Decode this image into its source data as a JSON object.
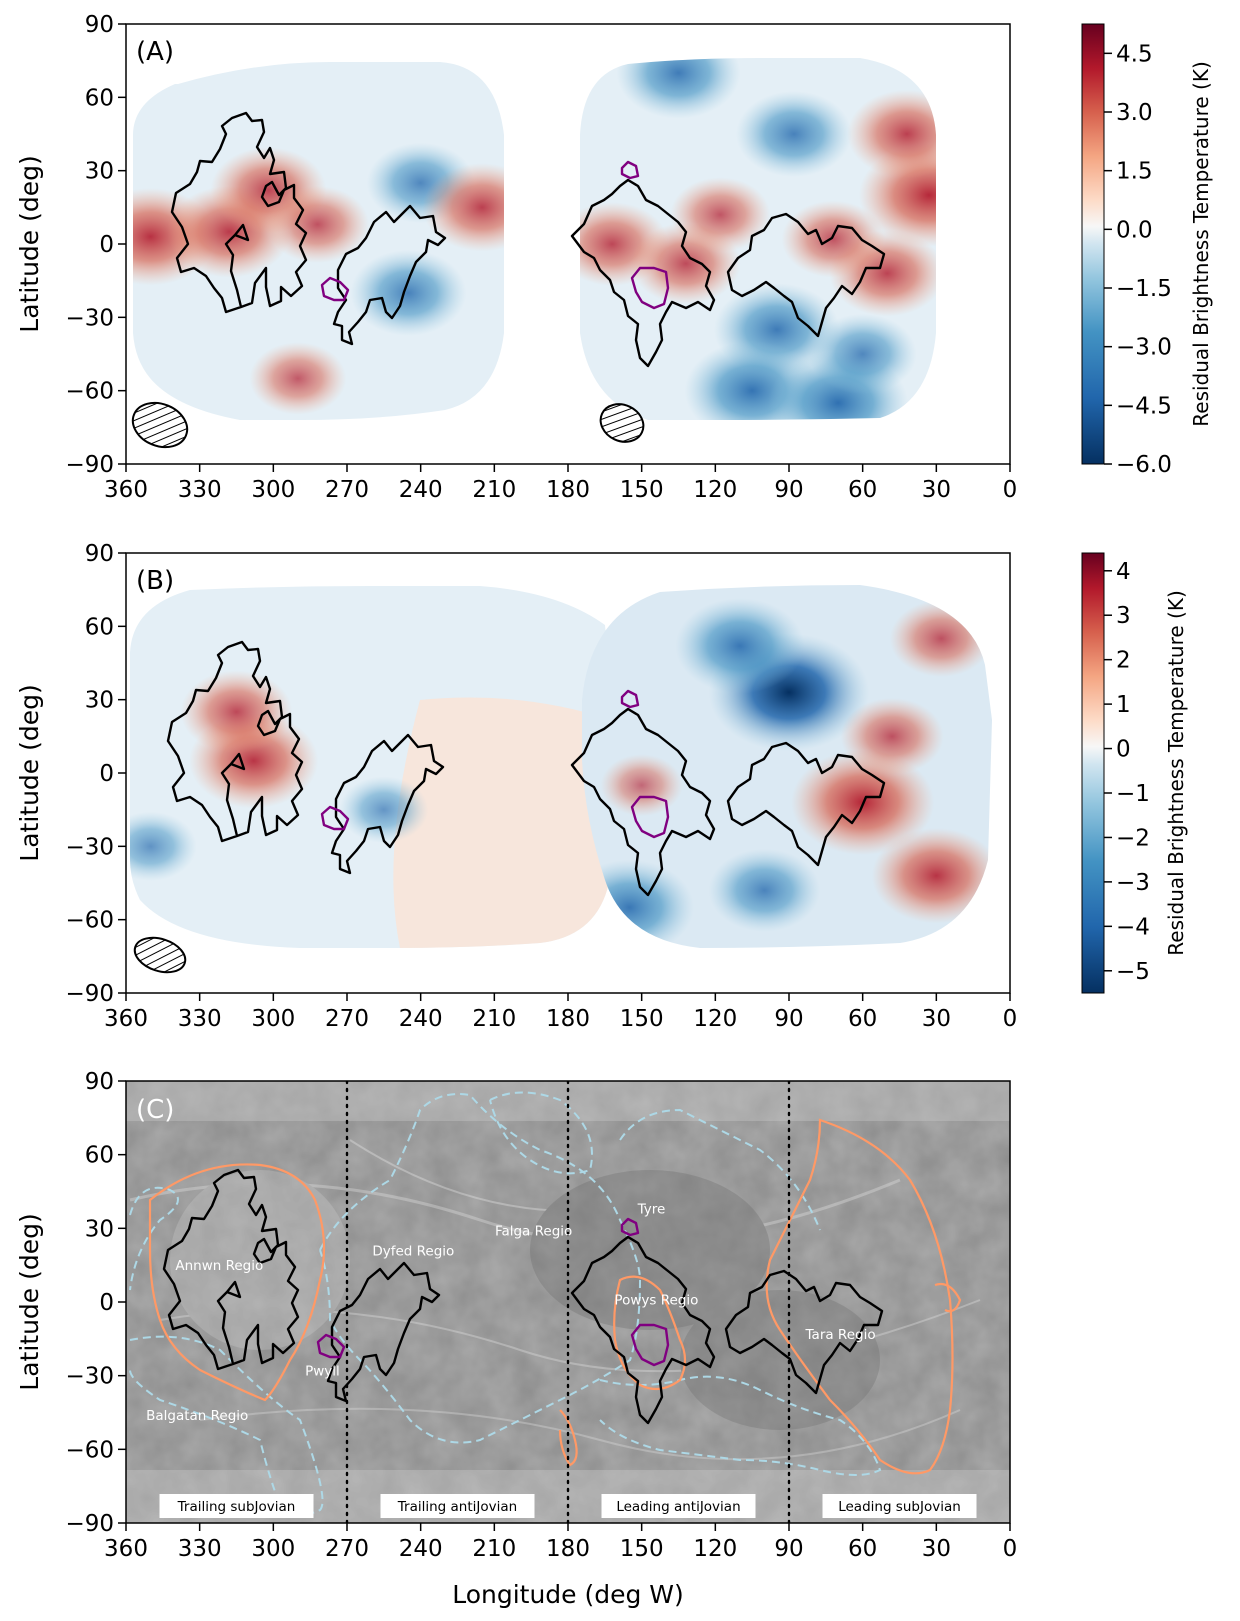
{
  "chart_data": [
    {
      "type": "heatmap",
      "panel": "(A)",
      "ylabel": "Latitude (deg)",
      "xlabel": "",
      "xlim": [
        360,
        0
      ],
      "ylim": [
        -90,
        90
      ],
      "xticks": [
        360,
        330,
        300,
        270,
        240,
        210,
        180,
        150,
        120,
        90,
        60,
        30,
        0
      ],
      "yticks": [
        90,
        60,
        30,
        0,
        -30,
        -60,
        -90
      ],
      "colorbar": {
        "label": "Residual Brightness Temperature (K)",
        "range": [
          -6.0,
          5.25
        ],
        "ticks": [
          4.5,
          3.0,
          1.5,
          0.0,
          -1.5,
          -3.0,
          -4.5,
          -6.0
        ],
        "tick_labels": [
          "4.5",
          "3.0",
          "1.5",
          "0.0",
          "−1.5",
          "−3.0",
          "−4.5",
          "−6.0"
        ]
      },
      "hot_spots": [
        {
          "lon": 350,
          "lat": 3,
          "value": 4.0
        },
        {
          "lon": 318,
          "lat": 5,
          "value": 3.5
        },
        {
          "lon": 302,
          "lat": 22,
          "value": 3.0
        },
        {
          "lon": 282,
          "lat": 8,
          "value": 2.2
        },
        {
          "lon": 215,
          "lat": 15,
          "value": 3.2
        },
        {
          "lon": 162,
          "lat": 0,
          "value": 2.8
        },
        {
          "lon": 132,
          "lat": -8,
          "value": 2.6
        },
        {
          "lon": 118,
          "lat": 12,
          "value": 2.0
        },
        {
          "lon": 33,
          "lat": 20,
          "value": 4.5
        },
        {
          "lon": 42,
          "lat": 45,
          "value": 3.2
        },
        {
          "lon": 50,
          "lat": -12,
          "value": 3.0
        },
        {
          "lon": 290,
          "lat": -55,
          "value": 1.8
        },
        {
          "lon": 72,
          "lat": 2,
          "value": 2.2
        }
      ],
      "cold_spots": [
        {
          "lon": 240,
          "lat": 25,
          "value": -2.5
        },
        {
          "lon": 245,
          "lat": -20,
          "value": -3.0
        },
        {
          "lon": 88,
          "lat": 45,
          "value": -3.0
        },
        {
          "lon": 95,
          "lat": -35,
          "value": -3.6
        },
        {
          "lon": 105,
          "lat": -60,
          "value": -4.2
        },
        {
          "lon": 70,
          "lat": -65,
          "value": -4.5
        },
        {
          "lon": 135,
          "lat": 70,
          "value": -3.5
        },
        {
          "lon": 60,
          "lat": -45,
          "value": -2.5
        }
      ]
    },
    {
      "type": "heatmap",
      "panel": "(B)",
      "ylabel": "Latitude (deg)",
      "xlabel": "",
      "xlim": [
        360,
        0
      ],
      "ylim": [
        -90,
        90
      ],
      "xticks": [
        360,
        330,
        300,
        270,
        240,
        210,
        180,
        150,
        120,
        90,
        60,
        30,
        0
      ],
      "yticks": [
        90,
        60,
        30,
        0,
        -30,
        -60,
        -90
      ],
      "colorbar": {
        "label": "Residual Brightness Temperature (K)",
        "range": [
          -5.5,
          4.4
        ],
        "ticks": [
          4,
          3,
          2,
          1,
          0,
          -1,
          -2,
          -3,
          -4,
          -5
        ],
        "tick_labels": [
          "4",
          "3",
          "2",
          "1",
          "0",
          "−1",
          "−2",
          "−3",
          "−4",
          "−5"
        ]
      },
      "hot_spots": [
        {
          "lon": 308,
          "lat": 5,
          "value": 3.5
        },
        {
          "lon": 315,
          "lat": 25,
          "value": 2.5
        },
        {
          "lon": 60,
          "lat": -12,
          "value": 4.3
        },
        {
          "lon": 48,
          "lat": 15,
          "value": 2.0
        },
        {
          "lon": 30,
          "lat": -42,
          "value": 3.5
        },
        {
          "lon": 28,
          "lat": 55,
          "value": 2.0
        },
        {
          "lon": 150,
          "lat": -5,
          "value": 0.8
        }
      ],
      "cold_spots": [
        {
          "lon": 90,
          "lat": 33,
          "value": -5.3
        },
        {
          "lon": 110,
          "lat": 52,
          "value": -3.5
        },
        {
          "lon": 155,
          "lat": -55,
          "value": -3.5
        },
        {
          "lon": 100,
          "lat": -48,
          "value": -2.5
        },
        {
          "lon": 255,
          "lat": -15,
          "value": -1.2
        },
        {
          "lon": 350,
          "lat": -30,
          "value": -1.4
        }
      ]
    },
    {
      "type": "map",
      "panel": "(C)",
      "ylabel": "Latitude (deg)",
      "xlabel": "Longitude (deg W)",
      "xlim": [
        360,
        0
      ],
      "ylim": [
        -90,
        90
      ],
      "xticks": [
        360,
        330,
        300,
        270,
        240,
        210,
        180,
        150,
        120,
        90,
        60,
        30,
        0
      ],
      "yticks": [
        90,
        60,
        30,
        0,
        -30,
        -60,
        -90
      ],
      "dividers_lon": [
        270,
        180,
        90
      ],
      "region_labels": [
        {
          "text": "Annwn Regio",
          "lon": 322,
          "lat": 13
        },
        {
          "text": "Dyfed Regio",
          "lon": 243,
          "lat": 19
        },
        {
          "text": "Falga Regio",
          "lon": 194,
          "lat": 27
        },
        {
          "text": "Tyre",
          "lon": 146,
          "lat": 36
        },
        {
          "text": "Powys Regio",
          "lon": 144,
          "lat": -1
        },
        {
          "text": "Tara Regio",
          "lon": 69,
          "lat": -15
        },
        {
          "text": "Pwyll",
          "lon": 280,
          "lat": -30
        },
        {
          "text": "Balgatan Regio",
          "lon": 331,
          "lat": -48
        }
      ],
      "sectors": [
        {
          "text": "Trailing subJovian",
          "center_lon": 315
        },
        {
          "text": "Trailing antiJovian",
          "center_lon": 225
        },
        {
          "text": "Leading antiJovian",
          "center_lon": 135
        },
        {
          "text": "Leading subJovian",
          "center_lon": 45
        }
      ]
    }
  ]
}
